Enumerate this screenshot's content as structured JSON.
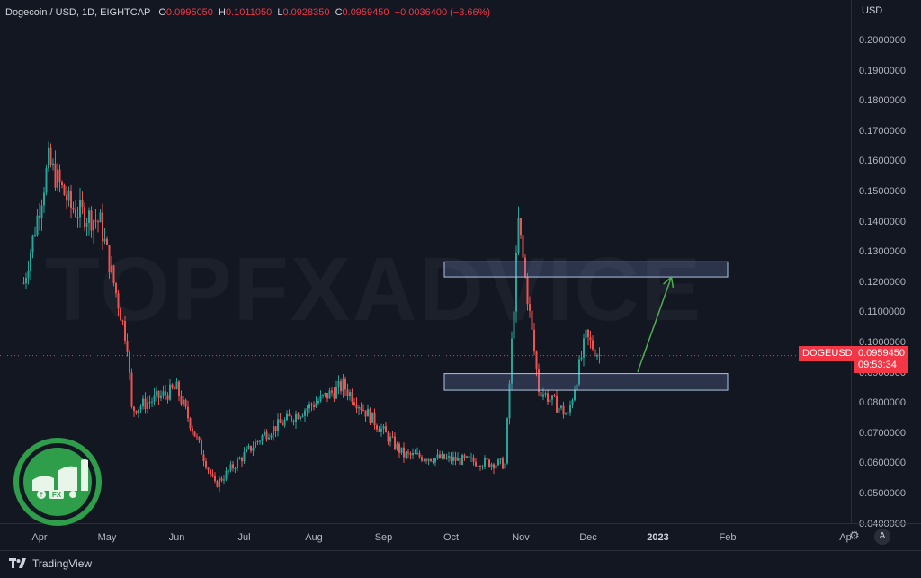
{
  "header": {
    "symbol": "Dogecoin / USD, 1D, EIGHTCAP",
    "o_label": "O",
    "o_value": "0.0995050",
    "h_label": "H",
    "h_value": "0.1011050",
    "l_label": "L",
    "l_value": "0.0928350",
    "c_label": "C",
    "c_value": "0.0959450",
    "change": "−0.0036400 (−3.66%)"
  },
  "price_axis": {
    "currency": "USD",
    "labels": [
      "0.2000000",
      "0.1900000",
      "0.1800000",
      "0.1700000",
      "0.1600000",
      "0.1500000",
      "0.1400000",
      "0.1300000",
      "0.1200000",
      "0.1100000",
      "0.1000000",
      "0.0900000",
      "0.0800000",
      "0.0700000",
      "0.0600000",
      "0.0500000",
      "0.0400000"
    ]
  },
  "time_axis": {
    "labels": [
      "Apr",
      "May",
      "Jun",
      "Jul",
      "Aug",
      "Sep",
      "Oct",
      "Nov",
      "Dec",
      "2023",
      "Feb",
      "Ap"
    ]
  },
  "tags": {
    "symbol_tag": "DOGEUSD",
    "price": "0.0959450",
    "countdown": "09:53:34"
  },
  "watermark": "TOPFXADVICE",
  "footer": {
    "brand": "TradingView",
    "auto_button": "A"
  },
  "logo_text": {
    "left": "FX"
  },
  "colors": {
    "up": "#26a69a",
    "down": "#ef5350",
    "accent": "#f23645",
    "zone": "#b0c4de",
    "arrow": "#4caf50",
    "logo": "#2e9e4a"
  },
  "chart_data": {
    "type": "candlestick",
    "title": "Dogecoin / USD, 1D, EIGHTCAP",
    "ylabel": "USD",
    "ylim": [
      0.04,
      0.2
    ],
    "last_price": 0.095945,
    "key_points": [
      {
        "date": "2022-03-25",
        "price": 0.12
      },
      {
        "date": "2022-04-05",
        "price": 0.16
      },
      {
        "date": "2022-04-15",
        "price": 0.145
      },
      {
        "date": "2022-04-28",
        "price": 0.14
      },
      {
        "date": "2022-05-10",
        "price": 0.1
      },
      {
        "date": "2022-05-12",
        "price": 0.078
      },
      {
        "date": "2022-06-01",
        "price": 0.085
      },
      {
        "date": "2022-06-18",
        "price": 0.053
      },
      {
        "date": "2022-07-10",
        "price": 0.07
      },
      {
        "date": "2022-08-14",
        "price": 0.086
      },
      {
        "date": "2022-09-10",
        "price": 0.063
      },
      {
        "date": "2022-10-25",
        "price": 0.06
      },
      {
        "date": "2022-10-31",
        "price": 0.14
      },
      {
        "date": "2022-11-09",
        "price": 0.085
      },
      {
        "date": "2022-11-22",
        "price": 0.076
      },
      {
        "date": "2022-11-30",
        "price": 0.102
      },
      {
        "date": "2022-12-06",
        "price": 0.096
      }
    ],
    "zones": [
      {
        "low": 0.122,
        "high": 0.127,
        "from": "2022-09-28",
        "to": "2023-02-01"
      },
      {
        "low": 0.0845,
        "high": 0.09,
        "from": "2022-09-28",
        "to": "2023-02-01"
      }
    ],
    "arrow": {
      "from": {
        "date": "2022-12-23",
        "price": 0.0905
      },
      "to": {
        "date": "2023-01-07",
        "price": 0.122
      }
    }
  }
}
